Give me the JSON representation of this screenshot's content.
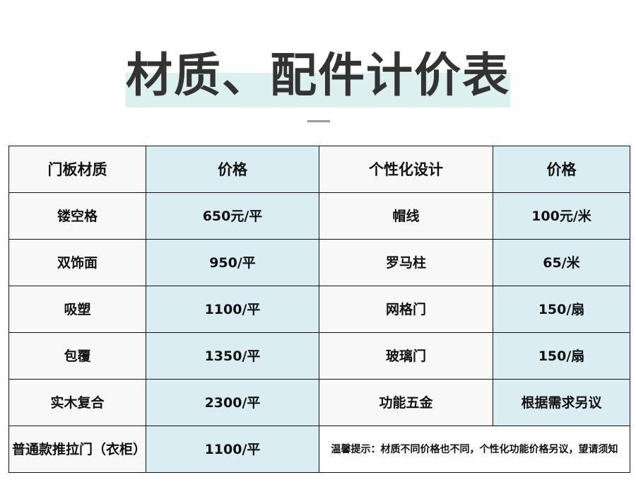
{
  "title": "材质、配件计价表",
  "table": {
    "headers": [
      "门板材质",
      "价格",
      "个性化设计",
      "价格"
    ],
    "rows": [
      [
        "镂空格",
        "650元/平",
        "帽线",
        "100元/米"
      ],
      [
        "双饰面",
        "950/平",
        "罗马柱",
        "65/米"
      ],
      [
        "吸塑",
        "1100/平",
        "网格门",
        "150/扇"
      ],
      [
        "包覆",
        "1350/平",
        "玻璃门",
        "150/扇"
      ],
      [
        "实木复合",
        "2300/平",
        "功能五金",
        "根据需求另议"
      ]
    ],
    "last_row": {
      "material": "普通款推拉门（衣柜）",
      "price": "1100/平",
      "note": "温馨提示：材质不同价格也不同，个性化功能价格另议，望请须知"
    }
  },
  "colors": {
    "highlight": "#dcf0f0",
    "price_column": "#daedf3",
    "title_text": "#333333"
  }
}
